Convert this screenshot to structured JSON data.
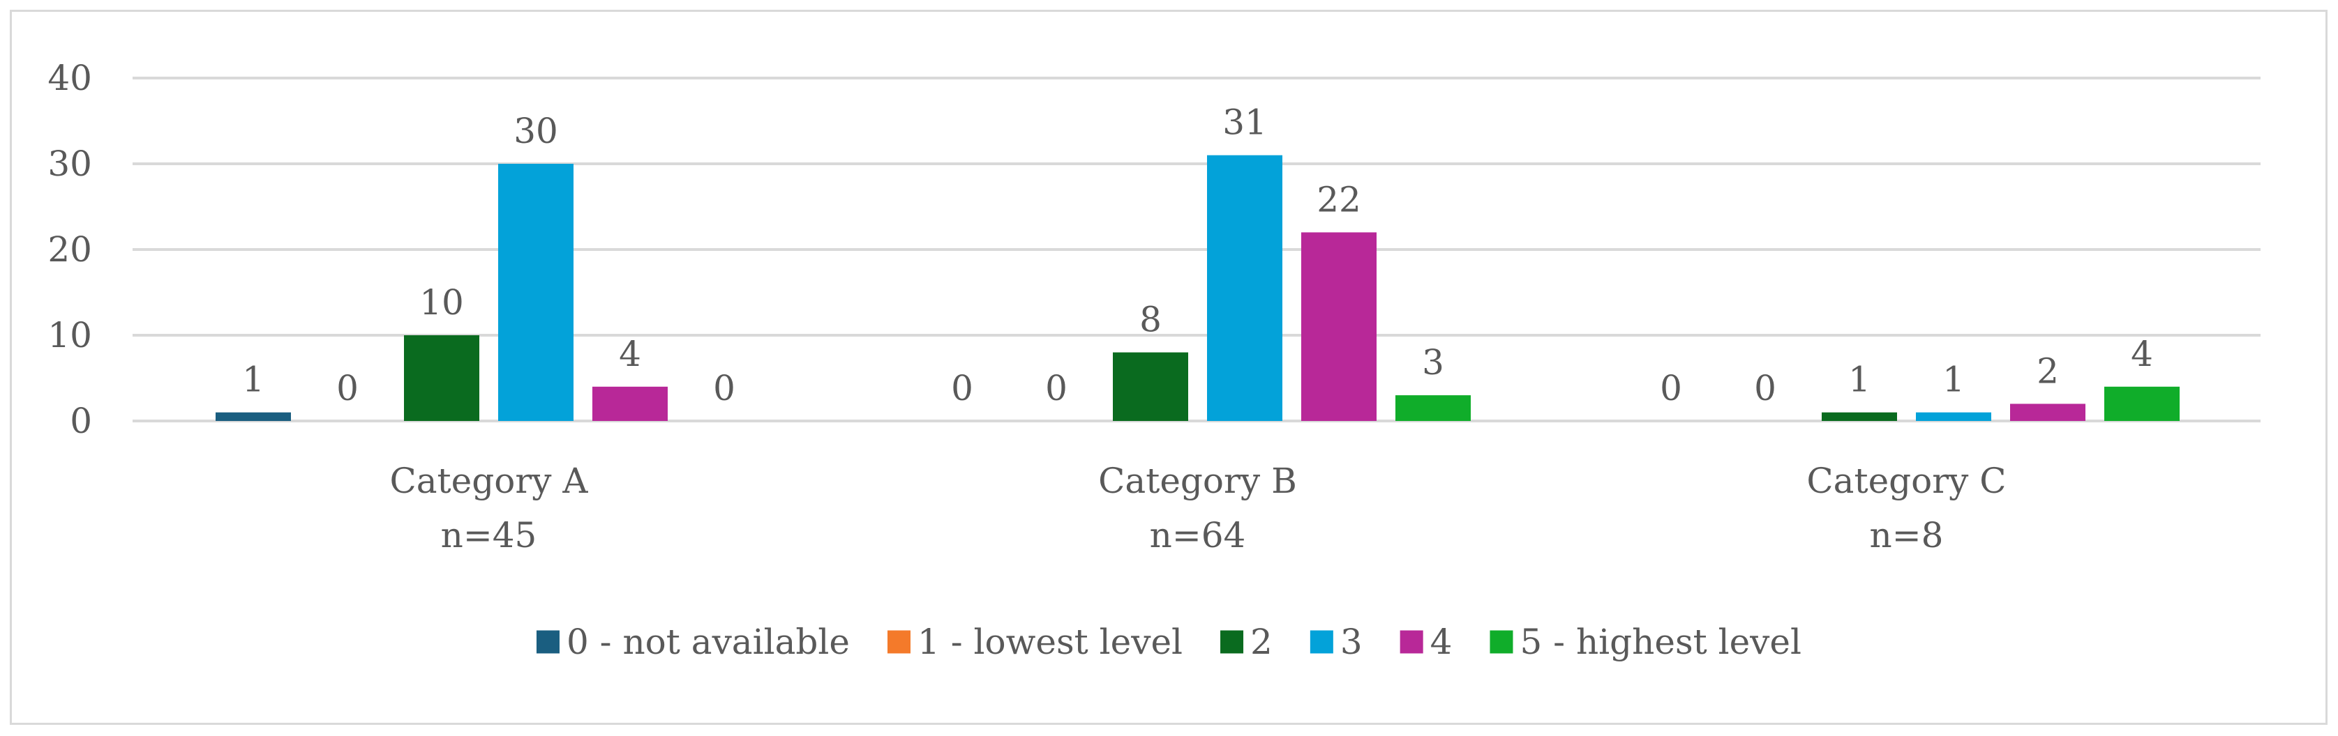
{
  "chart_data": {
    "type": "bar",
    "title": "",
    "xlabel": "",
    "ylabel": "",
    "ylim": [
      0,
      40
    ],
    "yticks": [
      0,
      10,
      20,
      30,
      40
    ],
    "grid": true,
    "legend_position": "bottom",
    "categories": [
      {
        "label": "Category A",
        "n": "n=45"
      },
      {
        "label": "Category B",
        "n": "n=64"
      },
      {
        "label": "Category C",
        "n": "n=8"
      }
    ],
    "series": [
      {
        "name": "0 - not available",
        "color": "#1a5e80",
        "values": [
          1,
          0,
          0
        ]
      },
      {
        "name": "1 - lowest level",
        "color": "#f47a2a",
        "values": [
          0,
          0,
          0
        ]
      },
      {
        "name": "2",
        "color": "#0a6b1f",
        "values": [
          10,
          8,
          1
        ]
      },
      {
        "name": "3",
        "color": "#03a2d9",
        "values": [
          30,
          31,
          1
        ]
      },
      {
        "name": "4",
        "color": "#b82898",
        "values": [
          4,
          22,
          2
        ]
      },
      {
        "name": "5 - highest level",
        "color": "#10ad2a",
        "values": [
          0,
          3,
          4
        ]
      }
    ],
    "data_labels": true
  }
}
